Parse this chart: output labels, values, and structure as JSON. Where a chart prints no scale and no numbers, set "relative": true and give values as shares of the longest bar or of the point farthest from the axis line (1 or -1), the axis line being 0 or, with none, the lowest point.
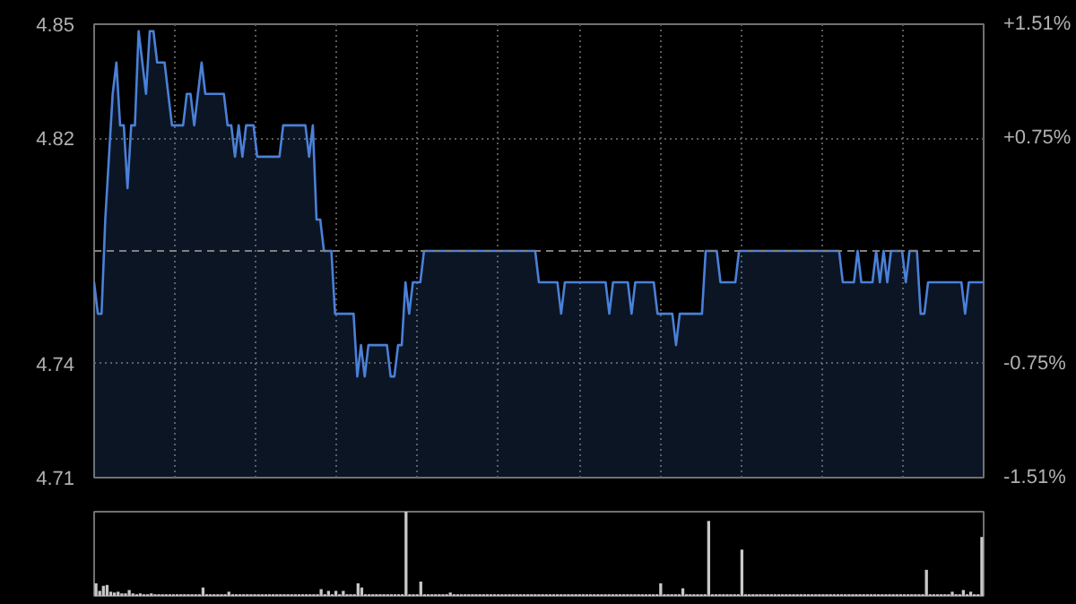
{
  "chart_data": [
    {
      "type": "area",
      "categories": [
        null,
        null,
        null,
        null,
        null,
        null,
        null,
        null,
        null,
        null,
        null,
        null,
        null,
        null,
        null,
        null,
        null,
        null,
        null,
        null,
        null,
        null,
        null,
        null,
        null,
        null,
        null,
        null,
        null,
        null,
        null,
        null,
        null,
        null,
        null,
        null,
        null,
        null,
        null,
        null,
        null,
        null,
        null,
        null,
        null,
        null,
        null,
        null,
        null,
        null,
        null,
        null,
        null,
        null,
        null,
        null,
        null,
        null,
        null,
        null,
        null,
        null,
        null,
        null,
        null,
        null,
        null,
        null,
        null,
        null,
        null,
        null,
        null,
        null,
        null,
        null,
        null,
        null,
        null,
        null,
        null,
        null,
        null,
        null,
        null,
        null,
        null,
        null,
        null,
        null,
        null,
        null,
        null,
        null,
        null,
        null,
        null,
        null,
        null,
        null,
        null,
        null,
        null,
        null,
        null,
        null,
        null,
        null,
        null,
        null,
        null,
        null,
        null,
        null,
        null,
        null,
        null,
        null,
        null,
        null,
        null,
        null,
        null,
        null,
        null,
        null,
        null,
        null,
        null,
        null,
        null,
        null,
        null,
        null,
        null,
        null,
        null,
        null,
        null,
        null,
        null,
        null,
        null,
        null,
        null,
        null,
        null,
        null,
        null,
        null,
        null,
        null,
        null,
        null,
        null,
        null,
        null,
        null,
        null,
        null,
        null,
        null,
        null,
        null,
        null,
        null,
        null,
        null,
        null,
        null,
        null,
        null,
        null,
        null,
        null,
        null,
        null,
        null,
        null,
        null,
        null,
        null,
        null,
        null,
        null,
        null,
        null,
        null,
        null,
        null,
        null,
        null,
        null,
        null,
        null,
        null,
        null,
        null,
        null,
        null,
        null,
        null,
        null,
        null,
        null,
        null,
        null,
        null,
        null,
        null,
        null,
        null,
        null,
        null,
        null,
        null,
        null,
        null,
        null,
        null,
        null,
        null,
        null,
        null,
        null,
        null,
        null,
        null,
        null,
        null,
        null,
        null,
        null,
        null,
        null,
        null,
        null,
        null,
        null,
        null,
        null
      ],
      "series": [
        {
          "color": "#4a80d8",
          "values": [
            4.77,
            4.76,
            4.76,
            4.79,
            4.81,
            4.83,
            4.84,
            4.82,
            4.82,
            4.8,
            4.82,
            4.82,
            4.85,
            4.84,
            4.83,
            4.85,
            4.85,
            4.84,
            4.84,
            4.84,
            4.83,
            4.82,
            4.82,
            4.82,
            4.82,
            4.83,
            4.83,
            4.82,
            4.83,
            4.84,
            4.83,
            4.83,
            4.83,
            4.83,
            4.83,
            4.83,
            4.82,
            4.82,
            4.81,
            4.82,
            4.81,
            4.82,
            4.82,
            4.82,
            4.81,
            4.81,
            4.81,
            4.81,
            4.81,
            4.81,
            4.81,
            4.82,
            4.82,
            4.82,
            4.82,
            4.82,
            4.82,
            4.82,
            4.81,
            4.82,
            4.79,
            4.79,
            4.78,
            4.78,
            4.78,
            4.76,
            4.76,
            4.76,
            4.76,
            4.76,
            4.76,
            4.74,
            4.75,
            4.74,
            4.75,
            4.75,
            4.75,
            4.75,
            4.75,
            4.75,
            4.74,
            4.74,
            4.75,
            4.75,
            4.77,
            4.76,
            4.77,
            4.77,
            4.77,
            4.78,
            4.78,
            4.78,
            4.78,
            4.78,
            4.78,
            4.78,
            4.78,
            4.78,
            4.78,
            4.78,
            4.78,
            4.78,
            4.78,
            4.78,
            4.78,
            4.78,
            4.78,
            4.78,
            4.78,
            4.78,
            4.78,
            4.78,
            4.78,
            4.78,
            4.78,
            4.78,
            4.78,
            4.78,
            4.78,
            4.78,
            4.77,
            4.77,
            4.77,
            4.77,
            4.77,
            4.77,
            4.76,
            4.77,
            4.77,
            4.77,
            4.77,
            4.77,
            4.77,
            4.77,
            4.77,
            4.77,
            4.77,
            4.77,
            4.77,
            4.76,
            4.77,
            4.77,
            4.77,
            4.77,
            4.77,
            4.76,
            4.77,
            4.77,
            4.77,
            4.77,
            4.77,
            4.77,
            4.76,
            4.76,
            4.76,
            4.76,
            4.76,
            4.75,
            4.76,
            4.76,
            4.76,
            4.76,
            4.76,
            4.76,
            4.76,
            4.78,
            4.78,
            4.78,
            4.78,
            4.77,
            4.77,
            4.77,
            4.77,
            4.77,
            4.78,
            4.78,
            4.78,
            4.78,
            4.78,
            4.78,
            4.78,
            4.78,
            4.78,
            4.78,
            4.78,
            4.78,
            4.78,
            4.78,
            4.78,
            4.78,
            4.78,
            4.78,
            4.78,
            4.78,
            4.78,
            4.78,
            4.78,
            4.78,
            4.78,
            4.78,
            4.78,
            4.78,
            4.77,
            4.77,
            4.77,
            4.77,
            4.78,
            4.77,
            4.77,
            4.77,
            4.77,
            4.78,
            4.77,
            4.78,
            4.77,
            4.78,
            4.78,
            4.78,
            4.78,
            4.77,
            4.78,
            4.78,
            4.78,
            4.76,
            4.76,
            4.77,
            4.77,
            4.77,
            4.77,
            4.77,
            4.77,
            4.77,
            4.77,
            4.77,
            4.77,
            4.76,
            4.77,
            4.77,
            4.77,
            4.77,
            4.77
          ]
        }
      ],
      "ylim": [
        4.7078,
        4.8522
      ],
      "yticks": [
        {
          "value": 4.8522,
          "label": "4.85"
        },
        {
          "value": 4.8159,
          "label": "4.82"
        },
        {
          "value": 4.7441,
          "label": "4.74"
        },
        {
          "value": 4.7078,
          "label": "4.71"
        }
      ],
      "y2lim": [
        -1.51,
        1.51
      ],
      "y2ticks": [
        {
          "value": 1.51,
          "label": "+1.51%"
        },
        {
          "value": 0.75,
          "label": "+0.75%"
        },
        {
          "value": -0.75,
          "label": "-0.75%"
        },
        {
          "value": -1.51,
          "label": "-1.51%"
        }
      ],
      "ref_lines": [
        {
          "axis": "y",
          "value": 4.78,
          "color": "#808080",
          "line_style": "dashed"
        }
      ],
      "grid": true
    },
    {
      "type": "bar",
      "relative": true,
      "categories": [
        null,
        null,
        null,
        null,
        null,
        null,
        null,
        null,
        null,
        null,
        null,
        null,
        null,
        null,
        null,
        null,
        null,
        null,
        null,
        null,
        null,
        null,
        null,
        null,
        null,
        null,
        null,
        null,
        null,
        null,
        null,
        null,
        null,
        null,
        null,
        null,
        null,
        null,
        null,
        null,
        null,
        null,
        null,
        null,
        null,
        null,
        null,
        null,
        null,
        null,
        null,
        null,
        null,
        null,
        null,
        null,
        null,
        null,
        null,
        null,
        null,
        null,
        null,
        null,
        null,
        null,
        null,
        null,
        null,
        null,
        null,
        null,
        null,
        null,
        null,
        null,
        null,
        null,
        null,
        null,
        null,
        null,
        null,
        null,
        null,
        null,
        null,
        null,
        null,
        null,
        null,
        null,
        null,
        null,
        null,
        null,
        null,
        null,
        null,
        null,
        null,
        null,
        null,
        null,
        null,
        null,
        null,
        null,
        null,
        null,
        null,
        null,
        null,
        null,
        null,
        null,
        null,
        null,
        null,
        null,
        null,
        null,
        null,
        null,
        null,
        null,
        null,
        null,
        null,
        null,
        null,
        null,
        null,
        null,
        null,
        null,
        null,
        null,
        null,
        null,
        null,
        null,
        null,
        null,
        null,
        null,
        null,
        null,
        null,
        null,
        null,
        null,
        null,
        null,
        null,
        null,
        null,
        null,
        null,
        null,
        null,
        null,
        null,
        null,
        null,
        null,
        null,
        null,
        null,
        null,
        null,
        null,
        null,
        null,
        null,
        null,
        null,
        null,
        null,
        null,
        null,
        null,
        null,
        null,
        null,
        null,
        null,
        null,
        null,
        null,
        null,
        null,
        null,
        null,
        null,
        null,
        null,
        null,
        null,
        null,
        null,
        null,
        null,
        null,
        null,
        null,
        null,
        null,
        null,
        null,
        null,
        null,
        null,
        null,
        null,
        null,
        null,
        null,
        null,
        null,
        null,
        null,
        null,
        null,
        null,
        null,
        null,
        null,
        null,
        null,
        null,
        null,
        null,
        null,
        null,
        null,
        null,
        null,
        null,
        null,
        null
      ],
      "values": [
        0.15,
        0.06,
        0.12,
        0.13,
        0.05,
        0.04,
        0.05,
        0.03,
        0.03,
        0.07,
        0.03,
        0.02,
        0.03,
        0.02,
        0.02,
        0.03,
        0.02,
        0.02,
        0.02,
        0.02,
        0.02,
        0.02,
        0.02,
        0.02,
        0.02,
        0.02,
        0.02,
        0.02,
        0.02,
        0.1,
        0.02,
        0.02,
        0.02,
        0.02,
        0.02,
        0.02,
        0.05,
        0.02,
        0.02,
        0.02,
        0.02,
        0.02,
        0.02,
        0.02,
        0.02,
        0.02,
        0.02,
        0.02,
        0.02,
        0.02,
        0.02,
        0.02,
        0.02,
        0.02,
        0.02,
        0.02,
        0.02,
        0.02,
        0.02,
        0.02,
        0.02,
        0.08,
        0.02,
        0.06,
        0.02,
        0.06,
        0.02,
        0.06,
        0.02,
        0.02,
        0.02,
        0.15,
        0.1,
        0.02,
        0.02,
        0.02,
        0.02,
        0.02,
        0.02,
        0.02,
        0.02,
        0.02,
        0.02,
        0.02,
        1,
        0.02,
        0.02,
        0.02,
        0.17,
        0.02,
        0.02,
        0.02,
        0.02,
        0.02,
        0.02,
        0.02,
        0.04,
        0.02,
        0.02,
        0.02,
        0.02,
        0.02,
        0.02,
        0.02,
        0.02,
        0.02,
        0.02,
        0.02,
        0.02,
        0.02,
        0.02,
        0.02,
        0.02,
        0.02,
        0.02,
        0.02,
        0.02,
        0.02,
        0.02,
        0.02,
        0.02,
        0.02,
        0.02,
        0.02,
        0.02,
        0.02,
        0.02,
        0.02,
        0.02,
        0.02,
        0.02,
        0.02,
        0.02,
        0.02,
        0.02,
        0.02,
        0.02,
        0.02,
        0.02,
        0.02,
        0.02,
        0.02,
        0.02,
        0.02,
        0.02,
        0.02,
        0.02,
        0.02,
        0.02,
        0.02,
        0.02,
        0.02,
        0.02,
        0.15,
        0.02,
        0.02,
        0.02,
        0.02,
        0.02,
        0.09,
        0.02,
        0.02,
        0.02,
        0.02,
        0.02,
        0.02,
        0.89,
        0.02,
        0.02,
        0.02,
        0.02,
        0.02,
        0.02,
        0.02,
        0.02,
        0.55,
        0.02,
        0.02,
        0.02,
        0.02,
        0.02,
        0.02,
        0.02,
        0.02,
        0.02,
        0.02,
        0.02,
        0.02,
        0.02,
        0.02,
        0.02,
        0.02,
        0.02,
        0.02,
        0.02,
        0.02,
        0.02,
        0.02,
        0.02,
        0.02,
        0.02,
        0.02,
        0.02,
        0.02,
        0.02,
        0.02,
        0.02,
        0.02,
        0.02,
        0.02,
        0.02,
        0.02,
        0.02,
        0.02,
        0.02,
        0.02,
        0.02,
        0.02,
        0.02,
        0.02,
        0.02,
        0.02,
        0.02,
        0.02,
        0.02,
        0.31,
        0.02,
        0.02,
        0.02,
        0.02,
        0.02,
        0.02,
        0.05,
        0.02,
        0.02,
        0.07,
        0.02,
        0.05,
        0.02,
        0.02,
        0.7
      ],
      "color": "#c8c8c8",
      "tick_labels": false,
      "grid": false
    }
  ]
}
